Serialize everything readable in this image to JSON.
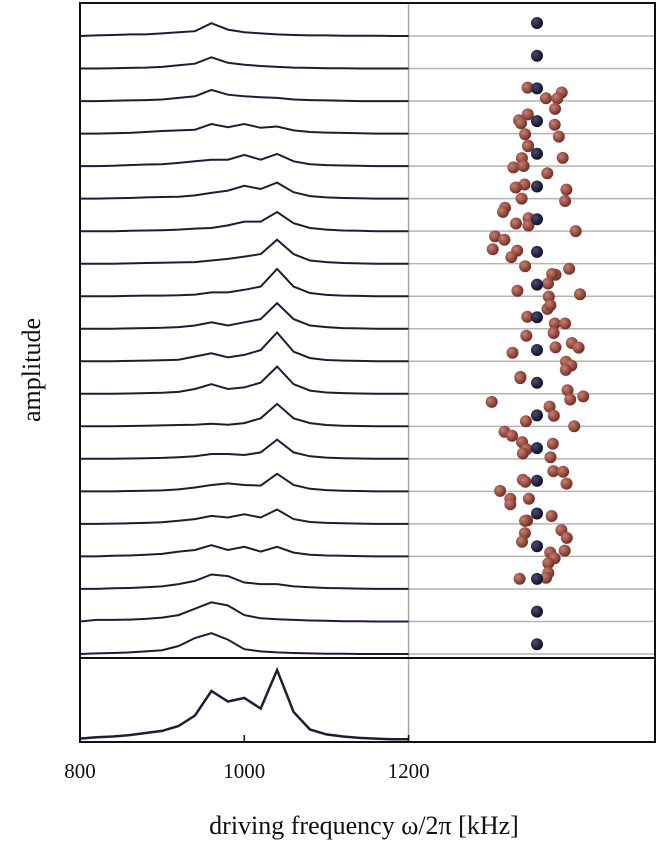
{
  "chart_data": {
    "type": "stacked_line",
    "xlabel": "driving frequency ω/2π [kHz]",
    "ylabel": "amplitude",
    "xlim": [
      800,
      1500
    ],
    "xticks": [
      800,
      1000,
      1200
    ],
    "color": "#1f1c3a",
    "x": [
      800,
      820,
      840,
      860,
      880,
      900,
      920,
      940,
      960,
      980,
      1000,
      1020,
      1040,
      1060,
      1080,
      1100,
      1120,
      1140,
      1160,
      1180,
      1200
    ],
    "series": [
      {
        "values": [
          0,
          0.02,
          0.03,
          0.05,
          0.05,
          0.08,
          0.12,
          0.15,
          0.4,
          0.2,
          0.12,
          0.08,
          0.05,
          0.03,
          0.02,
          0.02,
          0.01,
          0.01,
          0.01,
          0,
          0
        ]
      },
      {
        "values": [
          0,
          0,
          0.01,
          0.02,
          0.03,
          0.05,
          0.1,
          0.15,
          0.35,
          0.18,
          0.12,
          0.08,
          0.05,
          0.03,
          0.02,
          0.01,
          0.01,
          0,
          0,
          0,
          0
        ]
      },
      {
        "values": [
          0,
          0,
          0.01,
          0.02,
          0.03,
          0.05,
          0.1,
          0.15,
          0.35,
          0.2,
          0.15,
          0.12,
          0.1,
          0.05,
          0.03,
          0.02,
          0.01,
          0,
          0,
          0,
          0
        ]
      },
      {
        "values": [
          0,
          0,
          0.01,
          0.02,
          0.05,
          0.08,
          0.1,
          0.12,
          0.3,
          0.2,
          0.3,
          0.18,
          0.22,
          0.1,
          0.05,
          0.03,
          0.02,
          0.01,
          0,
          0,
          0
        ]
      },
      {
        "values": [
          0,
          0,
          0.01,
          0.03,
          0.05,
          0.06,
          0.1,
          0.15,
          0.2,
          0.2,
          0.35,
          0.2,
          0.38,
          0.15,
          0.06,
          0.03,
          0.02,
          0.01,
          0,
          0,
          0
        ]
      },
      {
        "values": [
          0,
          0,
          0.01,
          0.02,
          0.04,
          0.05,
          0.06,
          0.1,
          0.18,
          0.25,
          0.4,
          0.3,
          0.5,
          0.2,
          0.08,
          0.04,
          0.02,
          0.01,
          0,
          0,
          0
        ]
      },
      {
        "values": [
          0,
          0,
          0,
          0.01,
          0.02,
          0.03,
          0.05,
          0.08,
          0.1,
          0.18,
          0.3,
          0.3,
          0.6,
          0.25,
          0.1,
          0.05,
          0.02,
          0.01,
          0,
          0,
          0
        ]
      },
      {
        "values": [
          0,
          0,
          0,
          0.01,
          0.02,
          0.03,
          0.04,
          0.05,
          0.1,
          0.15,
          0.22,
          0.3,
          0.75,
          0.3,
          0.1,
          0.05,
          0.02,
          0.01,
          0,
          0,
          0
        ]
      },
      {
        "values": [
          0,
          0,
          0,
          0.01,
          0.02,
          0.02,
          0.03,
          0.05,
          0.12,
          0.12,
          0.2,
          0.3,
          0.85,
          0.3,
          0.1,
          0.04,
          0.02,
          0.01,
          0,
          0,
          0
        ]
      },
      {
        "values": [
          0,
          0,
          0,
          0.01,
          0.02,
          0.03,
          0.05,
          0.1,
          0.2,
          0.1,
          0.2,
          0.3,
          0.8,
          0.3,
          0.1,
          0.05,
          0.02,
          0.01,
          0,
          0,
          0
        ]
      },
      {
        "values": [
          0,
          0,
          0,
          0.01,
          0.02,
          0.03,
          0.05,
          0.15,
          0.25,
          0.12,
          0.2,
          0.35,
          0.9,
          0.3,
          0.1,
          0.04,
          0.02,
          0.01,
          0,
          0,
          0
        ]
      },
      {
        "values": [
          0,
          0,
          0,
          0.01,
          0.02,
          0.03,
          0.06,
          0.15,
          0.3,
          0.15,
          0.2,
          0.35,
          0.85,
          0.3,
          0.1,
          0.04,
          0.02,
          0.01,
          0,
          0,
          0
        ]
      },
      {
        "values": [
          0,
          0,
          0,
          0.01,
          0.02,
          0.03,
          0.04,
          0.05,
          0.08,
          0.05,
          0.1,
          0.25,
          0.7,
          0.25,
          0.1,
          0.04,
          0.02,
          0.01,
          0,
          0,
          0
        ]
      },
      {
        "values": [
          0,
          0,
          0,
          0.01,
          0.02,
          0.03,
          0.05,
          0.08,
          0.15,
          0.15,
          0.12,
          0.2,
          0.6,
          0.2,
          0.08,
          0.04,
          0.02,
          0.01,
          0,
          0,
          0
        ]
      },
      {
        "values": [
          0,
          0,
          0,
          0.01,
          0.02,
          0.03,
          0.06,
          0.12,
          0.2,
          0.25,
          0.2,
          0.18,
          0.55,
          0.2,
          0.08,
          0.04,
          0.02,
          0.01,
          0,
          0,
          0
        ]
      },
      {
        "values": [
          0,
          0,
          0.01,
          0.02,
          0.03,
          0.05,
          0.1,
          0.15,
          0.25,
          0.2,
          0.3,
          0.2,
          0.45,
          0.15,
          0.06,
          0.03,
          0.02,
          0.01,
          0,
          0,
          0
        ]
      },
      {
        "values": [
          0,
          0,
          0.02,
          0.03,
          0.05,
          0.08,
          0.15,
          0.2,
          0.35,
          0.2,
          0.3,
          0.15,
          0.3,
          0.12,
          0.05,
          0.03,
          0.02,
          0.01,
          0,
          0,
          0
        ]
      },
      {
        "values": [
          0,
          0,
          0.02,
          0.03,
          0.05,
          0.08,
          0.15,
          0.25,
          0.45,
          0.4,
          0.2,
          0.15,
          0.15,
          0.08,
          0.05,
          0.03,
          0.02,
          0.01,
          0,
          0,
          0
        ]
      },
      {
        "values": [
          0,
          0.05,
          0.05,
          0.06,
          0.08,
          0.12,
          0.2,
          0.4,
          0.6,
          0.5,
          0.2,
          0.1,
          0.07,
          0.05,
          0.03,
          0.02,
          0.01,
          0.01,
          0,
          0,
          0
        ]
      },
      {
        "values": [
          0,
          0.02,
          0.03,
          0.05,
          0.08,
          0.12,
          0.25,
          0.5,
          0.65,
          0.45,
          0.15,
          0.08,
          0.05,
          0.03,
          0.02,
          0.01,
          0.01,
          0,
          0,
          0,
          0
        ]
      }
    ],
    "total": {
      "values": [
        0.02,
        0.04,
        0.05,
        0.07,
        0.1,
        0.13,
        0.2,
        0.35,
        0.7,
        0.55,
        0.6,
        0.45,
        1.0,
        0.4,
        0.15,
        0.08,
        0.05,
        0.03,
        0.02,
        0.01,
        0.01
      ]
    }
  }
}
